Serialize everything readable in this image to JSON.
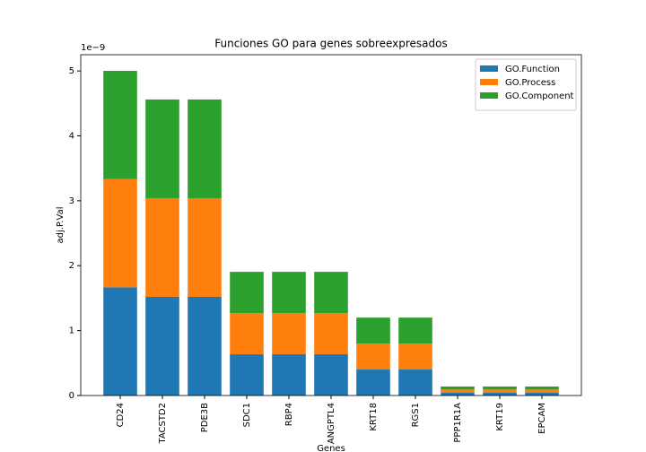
{
  "chart_data": {
    "type": "stacked_bar",
    "title": "Funciones GO para genes sobreexpresados",
    "x_label": "Genes",
    "y_label": "adj.P.Val",
    "y_offset_label": "1e−9",
    "categories": [
      "CD24",
      "TACSTD2",
      "PDE3B",
      "SDC1",
      "RBP4",
      "ANGPTL4",
      "KRT18",
      "RGS1",
      "PPP1R1A",
      "KRT19",
      "EPCAM"
    ],
    "series": [
      {
        "name": "GO.Function",
        "color": "#1f77b4",
        "values": [
          1.667,
          1.52,
          1.52,
          0.635,
          0.635,
          0.635,
          0.4,
          0.4,
          0.046,
          0.046,
          0.046
        ]
      },
      {
        "name": "GO.Process",
        "color": "#ff7f0e",
        "values": [
          1.667,
          1.52,
          1.52,
          0.635,
          0.635,
          0.635,
          0.4,
          0.4,
          0.046,
          0.046,
          0.046
        ]
      },
      {
        "name": "GO.Component",
        "color": "#2ca02c",
        "values": [
          1.667,
          1.52,
          1.52,
          0.635,
          0.635,
          0.635,
          0.4,
          0.4,
          0.046,
          0.046,
          0.046
        ]
      }
    ],
    "ylim": [
      0,
      5.25
    ],
    "yticks": [
      0,
      1,
      2,
      3,
      4,
      5
    ],
    "legend": "upper right",
    "grid": false
  }
}
